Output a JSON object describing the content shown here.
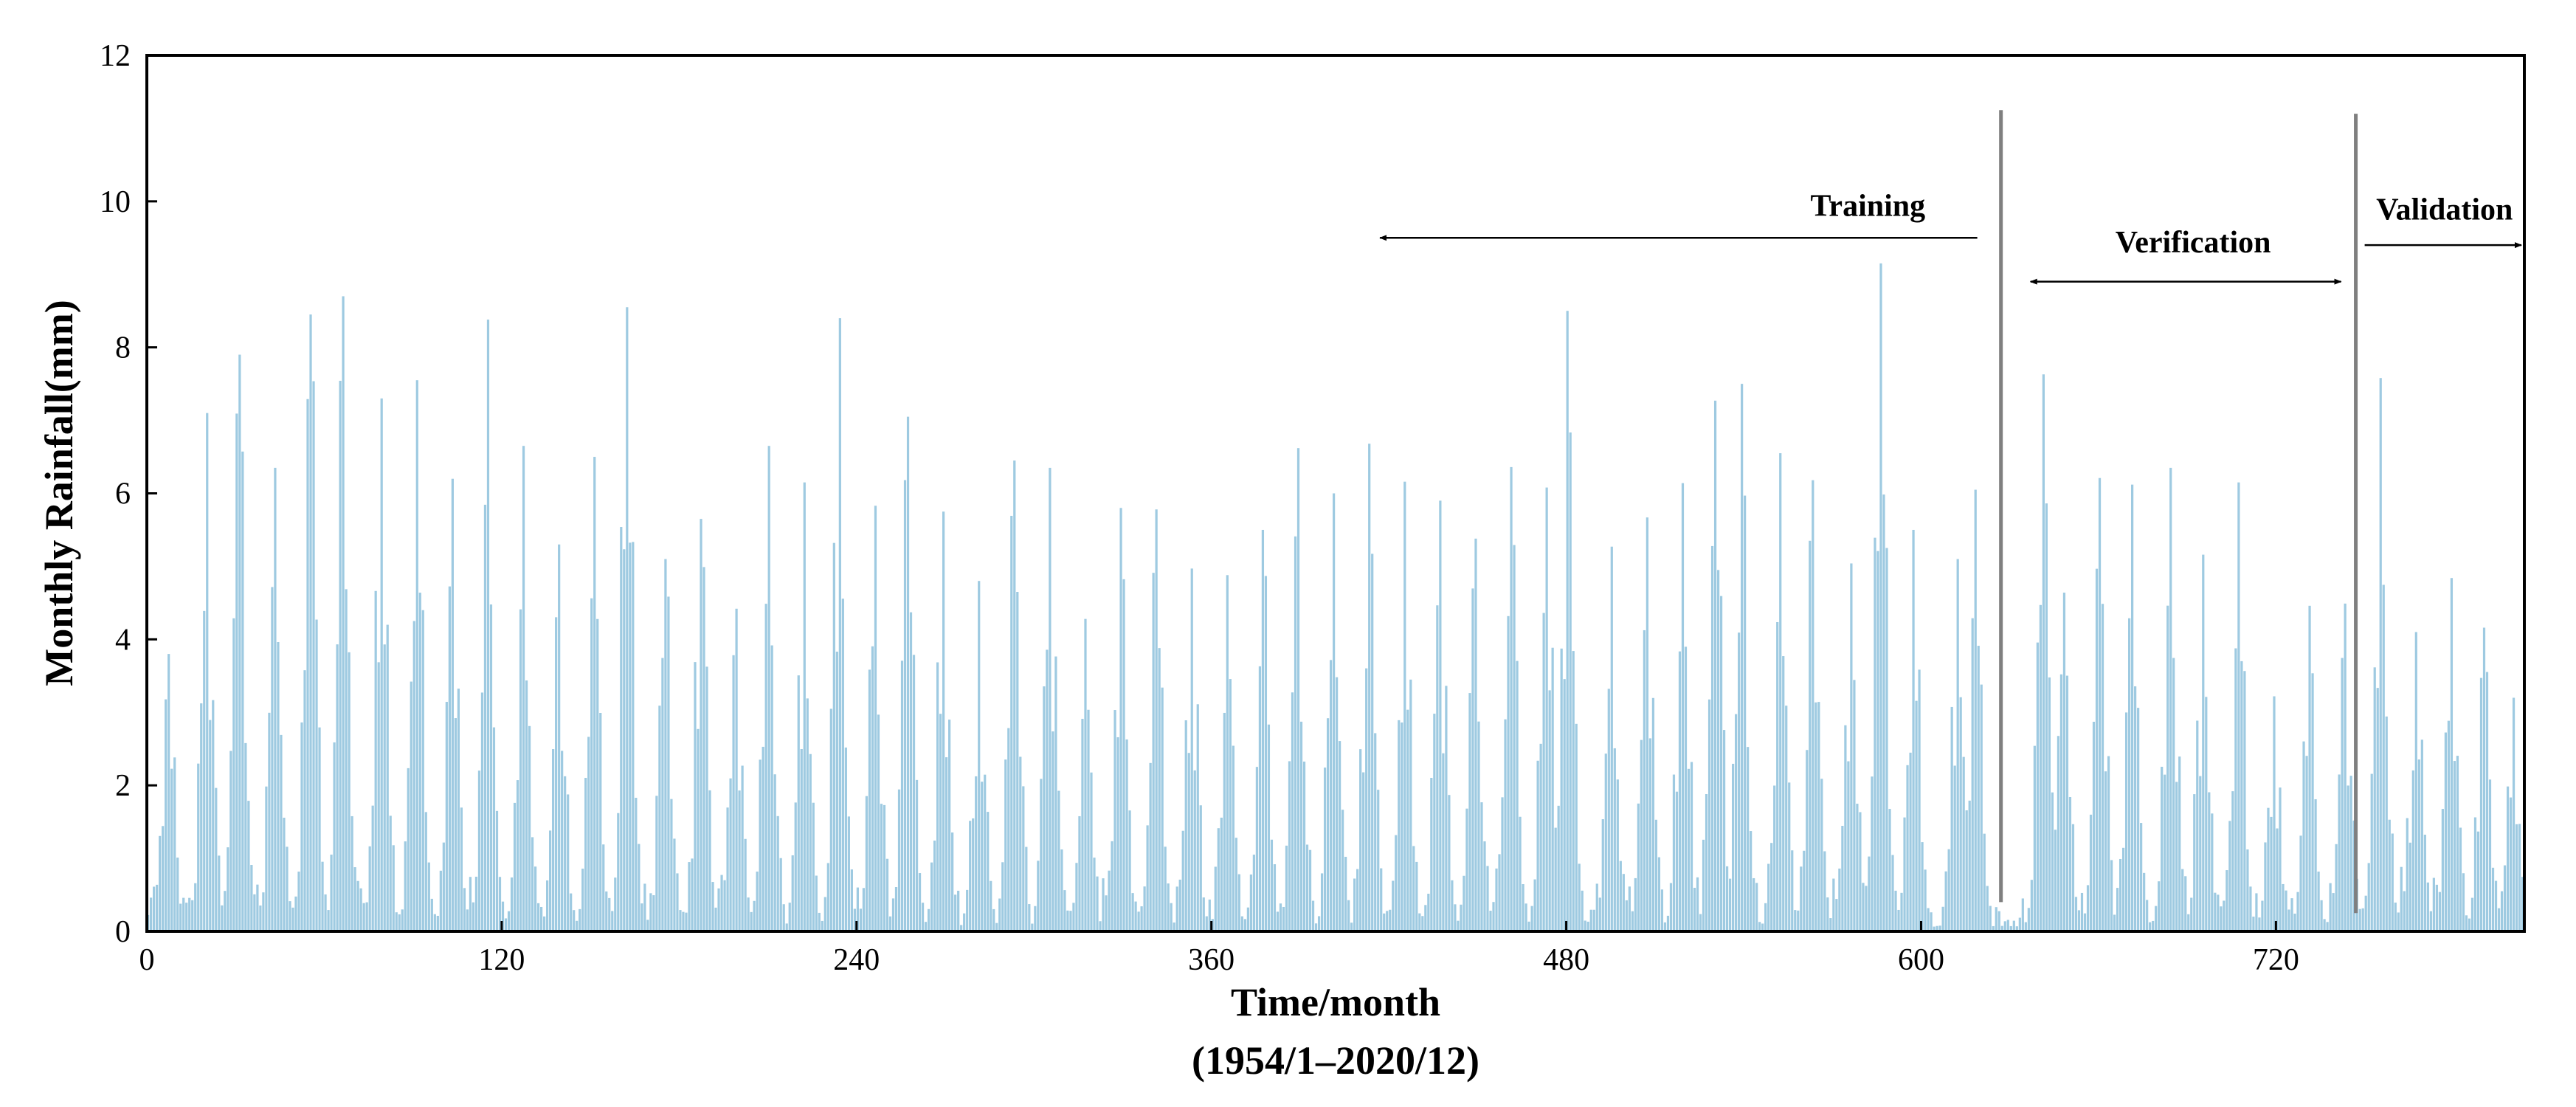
{
  "chart_data": {
    "type": "bar",
    "title": "",
    "xlabel": "Time/month",
    "xlabel_sub": "(1954/1–2020/12)",
    "ylabel": "Monthly Rainfall(mm)",
    "xlim": [
      0,
      804
    ],
    "ylim": [
      0,
      12
    ],
    "xticks": [
      0,
      120,
      240,
      360,
      480,
      600,
      720
    ],
    "yticks": [
      0,
      2,
      4,
      6,
      8,
      10,
      12
    ],
    "bar_color": "#9ecae1",
    "divider_color": "#7f7f7f",
    "grid": false,
    "legend": "none",
    "peaks": [
      {
        "x": 7,
        "y": 3.8
      },
      {
        "x": 20,
        "y": 7.1
      },
      {
        "x": 31,
        "y": 7.9
      },
      {
        "x": 43,
        "y": 6.35
      },
      {
        "x": 55,
        "y": 8.45
      },
      {
        "x": 66,
        "y": 8.7
      },
      {
        "x": 79,
        "y": 7.3
      },
      {
        "x": 91,
        "y": 7.55
      },
      {
        "x": 103,
        "y": 6.2
      },
      {
        "x": 115,
        "y": 8.38
      },
      {
        "x": 127,
        "y": 6.65
      },
      {
        "x": 139,
        "y": 5.3
      },
      {
        "x": 151,
        "y": 6.5
      },
      {
        "x": 162,
        "y": 8.55
      },
      {
        "x": 175,
        "y": 5.1
      },
      {
        "x": 187,
        "y": 5.65
      },
      {
        "x": 199,
        "y": 4.42
      },
      {
        "x": 210,
        "y": 6.65
      },
      {
        "x": 222,
        "y": 6.15
      },
      {
        "x": 234,
        "y": 8.4
      },
      {
        "x": 246,
        "y": 5.83
      },
      {
        "x": 257,
        "y": 7.05
      },
      {
        "x": 269,
        "y": 5.75
      },
      {
        "x": 281,
        "y": 4.8
      },
      {
        "x": 293,
        "y": 6.45
      },
      {
        "x": 305,
        "y": 6.35
      },
      {
        "x": 317,
        "y": 4.28
      },
      {
        "x": 329,
        "y": 5.8
      },
      {
        "x": 341,
        "y": 5.78
      },
      {
        "x": 353,
        "y": 4.97
      },
      {
        "x": 365,
        "y": 4.88
      },
      {
        "x": 377,
        "y": 5.5
      },
      {
        "x": 389,
        "y": 6.62
      },
      {
        "x": 401,
        "y": 6.0
      },
      {
        "x": 413,
        "y": 6.68
      },
      {
        "x": 425,
        "y": 6.16
      },
      {
        "x": 437,
        "y": 5.9
      },
      {
        "x": 449,
        "y": 5.38
      },
      {
        "x": 461,
        "y": 6.36
      },
      {
        "x": 473,
        "y": 6.08
      },
      {
        "x": 480,
        "y": 8.5
      },
      {
        "x": 495,
        "y": 5.27
      },
      {
        "x": 507,
        "y": 5.67
      },
      {
        "x": 519,
        "y": 6.14
      },
      {
        "x": 530,
        "y": 7.27
      },
      {
        "x": 539,
        "y": 7.5
      },
      {
        "x": 552,
        "y": 6.55
      },
      {
        "x": 563,
        "y": 6.18
      },
      {
        "x": 576,
        "y": 5.04
      },
      {
        "x": 586,
        "y": 9.15
      },
      {
        "x": 597,
        "y": 5.5
      },
      {
        "x": 612,
        "y": 5.1
      },
      {
        "x": 618,
        "y": 6.05
      },
      {
        "x": 641,
        "y": 7.63
      },
      {
        "x": 648,
        "y": 4.64
      },
      {
        "x": 660,
        "y": 6.21
      },
      {
        "x": 671,
        "y": 6.12
      },
      {
        "x": 684,
        "y": 6.35
      },
      {
        "x": 695,
        "y": 5.16
      },
      {
        "x": 707,
        "y": 6.15
      },
      {
        "x": 719,
        "y": 3.22
      },
      {
        "x": 731,
        "y": 4.46
      },
      {
        "x": 743,
        "y": 4.49
      },
      {
        "x": 755,
        "y": 7.58
      },
      {
        "x": 767,
        "y": 4.1
      },
      {
        "x": 779,
        "y": 4.84
      },
      {
        "x": 790,
        "y": 4.16
      },
      {
        "x": 800,
        "y": 3.2
      }
    ],
    "dividers": [
      {
        "x": 627,
        "ymin": 0.4,
        "ymax": 11.25
      },
      {
        "x": 747,
        "ymin": 0.25,
        "ymax": 11.2
      }
    ],
    "annotations": [
      {
        "text": "Training",
        "x": 582,
        "y": 9.8,
        "arrow": {
          "from": 619,
          "to": 417,
          "y": 9.5
        }
      },
      {
        "text": "Verification",
        "x": 692,
        "y": 9.3,
        "arrow": {
          "from": 637,
          "to": 742,
          "y": 8.9,
          "double": true
        }
      },
      {
        "text": "Validation",
        "x": 777,
        "y": 9.75,
        "arrow": {
          "from": 750,
          "to": 803,
          "y": 9.4
        }
      }
    ]
  }
}
